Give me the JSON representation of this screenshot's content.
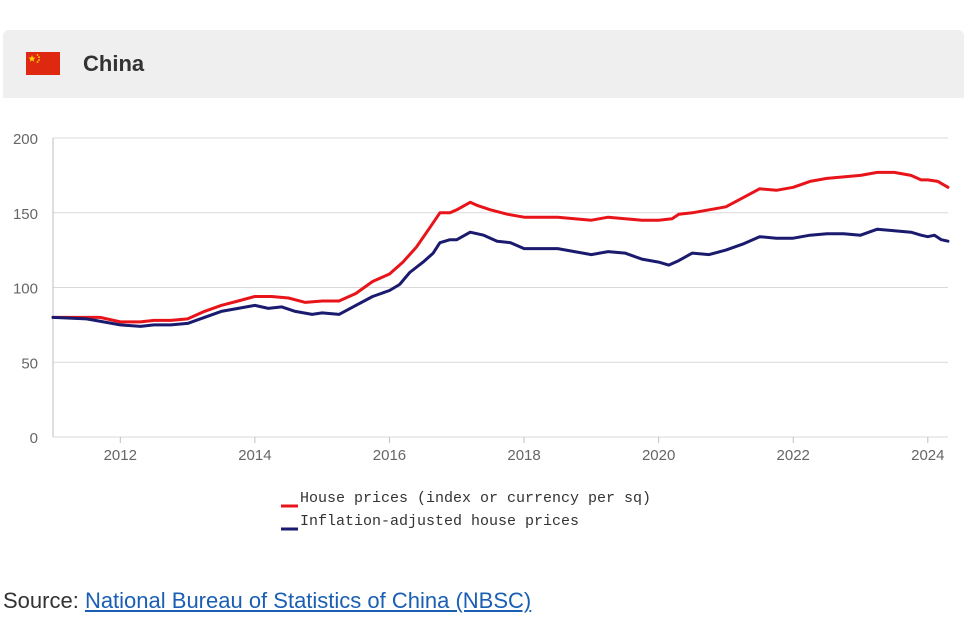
{
  "header": {
    "title": "China",
    "flag_icon": "china-flag-icon"
  },
  "source": {
    "prefix": "Source: ",
    "link_text": "National Bureau of Statistics of China (NBSC)"
  },
  "colors": {
    "header_bg": "#efefef",
    "nominal": "#e8141a",
    "real": "#1a1a6e",
    "grid": "#d9d9d9",
    "flag_red": "#de2910",
    "flag_yellow": "#ffde00"
  },
  "chart_data": {
    "type": "line",
    "xlim": [
      2011.0,
      2024.3
    ],
    "ylim": [
      0,
      200
    ],
    "y_ticks": [
      0,
      50,
      100,
      150,
      200
    ],
    "x_ticks": [
      2012,
      2014,
      2016,
      2018,
      2020,
      2022,
      2024
    ],
    "grid": true,
    "legend_position": "bottom",
    "series": [
      {
        "name": "House prices (index or currency per sq)",
        "color": "#e8141a",
        "points": [
          [
            2011.0,
            80
          ],
          [
            2011.5,
            80
          ],
          [
            2011.7,
            80
          ],
          [
            2012.0,
            77
          ],
          [
            2012.3,
            77
          ],
          [
            2012.5,
            78
          ],
          [
            2012.75,
            78
          ],
          [
            2013.0,
            79
          ],
          [
            2013.25,
            84
          ],
          [
            2013.5,
            88
          ],
          [
            2013.75,
            91
          ],
          [
            2014.0,
            94
          ],
          [
            2014.25,
            94
          ],
          [
            2014.5,
            93
          ],
          [
            2014.75,
            90
          ],
          [
            2015.0,
            91
          ],
          [
            2015.25,
            91
          ],
          [
            2015.5,
            96
          ],
          [
            2015.75,
            104
          ],
          [
            2016.0,
            109
          ],
          [
            2016.2,
            117
          ],
          [
            2016.4,
            127
          ],
          [
            2016.6,
            140
          ],
          [
            2016.75,
            150
          ],
          [
            2016.9,
            150
          ],
          [
            2017.0,
            152
          ],
          [
            2017.2,
            157
          ],
          [
            2017.3,
            155
          ],
          [
            2017.5,
            152
          ],
          [
            2017.75,
            149
          ],
          [
            2018.0,
            147
          ],
          [
            2018.25,
            147
          ],
          [
            2018.5,
            147
          ],
          [
            2018.75,
            146
          ],
          [
            2019.0,
            145
          ],
          [
            2019.25,
            147
          ],
          [
            2019.5,
            146
          ],
          [
            2019.75,
            145
          ],
          [
            2020.0,
            145
          ],
          [
            2020.2,
            146
          ],
          [
            2020.3,
            149
          ],
          [
            2020.5,
            150
          ],
          [
            2020.75,
            152
          ],
          [
            2021.0,
            154
          ],
          [
            2021.25,
            160
          ],
          [
            2021.5,
            166
          ],
          [
            2021.75,
            165
          ],
          [
            2022.0,
            167
          ],
          [
            2022.25,
            171
          ],
          [
            2022.5,
            173
          ],
          [
            2022.75,
            174
          ],
          [
            2023.0,
            175
          ],
          [
            2023.25,
            177
          ],
          [
            2023.5,
            177
          ],
          [
            2023.75,
            175
          ],
          [
            2023.9,
            172
          ],
          [
            2024.0,
            172
          ],
          [
            2024.15,
            171
          ],
          [
            2024.3,
            167
          ]
        ]
      },
      {
        "name": "Inflation-adjusted house prices",
        "color": "#1a1a6e",
        "points": [
          [
            2011.0,
            80
          ],
          [
            2011.5,
            79
          ],
          [
            2011.75,
            77
          ],
          [
            2012.0,
            75
          ],
          [
            2012.3,
            74
          ],
          [
            2012.5,
            75
          ],
          [
            2012.75,
            75
          ],
          [
            2013.0,
            76
          ],
          [
            2013.25,
            80
          ],
          [
            2013.5,
            84
          ],
          [
            2013.75,
            86
          ],
          [
            2014.0,
            88
          ],
          [
            2014.2,
            86
          ],
          [
            2014.4,
            87
          ],
          [
            2014.6,
            84
          ],
          [
            2014.85,
            82
          ],
          [
            2015.0,
            83
          ],
          [
            2015.25,
            82
          ],
          [
            2015.5,
            88
          ],
          [
            2015.75,
            94
          ],
          [
            2016.0,
            98
          ],
          [
            2016.15,
            102
          ],
          [
            2016.3,
            110
          ],
          [
            2016.5,
            117
          ],
          [
            2016.65,
            123
          ],
          [
            2016.75,
            130
          ],
          [
            2016.9,
            132
          ],
          [
            2017.0,
            132
          ],
          [
            2017.2,
            137
          ],
          [
            2017.4,
            135
          ],
          [
            2017.6,
            131
          ],
          [
            2017.8,
            130
          ],
          [
            2018.0,
            126
          ],
          [
            2018.25,
            126
          ],
          [
            2018.5,
            126
          ],
          [
            2018.75,
            124
          ],
          [
            2019.0,
            122
          ],
          [
            2019.25,
            124
          ],
          [
            2019.5,
            123
          ],
          [
            2019.75,
            119
          ],
          [
            2020.0,
            117
          ],
          [
            2020.15,
            115
          ],
          [
            2020.3,
            118
          ],
          [
            2020.5,
            123
          ],
          [
            2020.75,
            122
          ],
          [
            2021.0,
            125
          ],
          [
            2021.25,
            129
          ],
          [
            2021.5,
            134
          ],
          [
            2021.75,
            133
          ],
          [
            2022.0,
            133
          ],
          [
            2022.25,
            135
          ],
          [
            2022.5,
            136
          ],
          [
            2022.75,
            136
          ],
          [
            2023.0,
            135
          ],
          [
            2023.25,
            139
          ],
          [
            2023.5,
            138
          ],
          [
            2023.75,
            137
          ],
          [
            2023.9,
            135
          ],
          [
            2024.0,
            134
          ],
          [
            2024.1,
            135
          ],
          [
            2024.2,
            132
          ],
          [
            2024.3,
            131
          ]
        ]
      }
    ]
  }
}
